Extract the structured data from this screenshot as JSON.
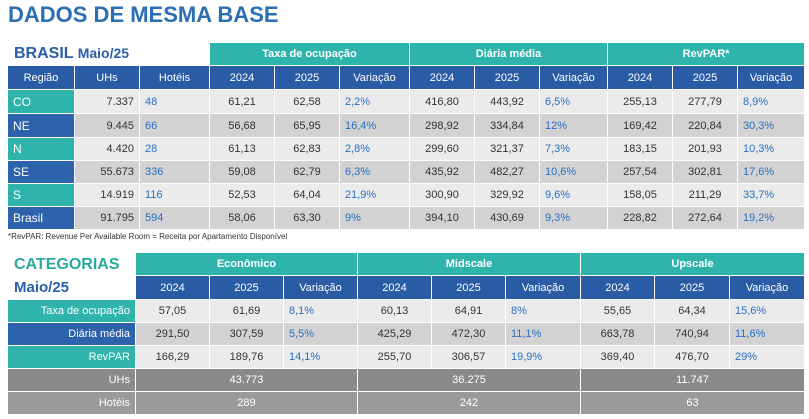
{
  "title": "DADOS DE MESMA BASE",
  "table1": {
    "label": "BRASIL",
    "period": "Maio/25",
    "groups": [
      "Taxa de ocupação",
      "Diária média",
      "RevPAR*"
    ],
    "columns": [
      "Região",
      "UHs",
      "Hotéis",
      "2024",
      "2025",
      "Variação",
      "2024",
      "2025",
      "Variação",
      "2024",
      "2025",
      "Variação"
    ],
    "rows": [
      [
        "CO",
        "7.337",
        "48",
        "61,21",
        "62,58",
        "2,2%",
        "416,80",
        "443,92",
        "6,5%",
        "255,13",
        "277,79",
        "8,9%"
      ],
      [
        "NE",
        "9.445",
        "66",
        "56,68",
        "65,95",
        "16,4%",
        "298,92",
        "334,84",
        "12%",
        "169,42",
        "220,84",
        "30,3%"
      ],
      [
        "N",
        "4.420",
        "28",
        "61,13",
        "62,83",
        "2,8%",
        "299,60",
        "321,37",
        "7,3%",
        "183,15",
        "201,93",
        "10,3%"
      ],
      [
        "SE",
        "55.673",
        "336",
        "59,08",
        "62,79",
        "6,3%",
        "435,92",
        "482,27",
        "10,6%",
        "257,54",
        "302,81",
        "17,6%"
      ],
      [
        "S",
        "14.919",
        "116",
        "52,53",
        "64,04",
        "21,9%",
        "300,90",
        "329,92",
        "9,6%",
        "158,05",
        "211,29",
        "33,7%"
      ],
      [
        "Brasil",
        "91.795",
        "594",
        "58,06",
        "63,30",
        "9%",
        "394,10",
        "430,69",
        "9,3%",
        "228,82",
        "272,64",
        "19,2%"
      ]
    ]
  },
  "footnote": "*RevPAR: Revenue Per Available Room = Receita por Apartamento Disponível",
  "table2": {
    "label": "CATEGORIAS",
    "period": "Maio/25",
    "groups": [
      "Econômico",
      "Midscale",
      "Upscale"
    ],
    "columns": [
      "2024",
      "2025",
      "Variação",
      "2024",
      "2025",
      "Variação",
      "2024",
      "2025",
      "Variação"
    ],
    "rows": [
      [
        "Taxa de ocupação",
        "57,05",
        "61,69",
        "8,1%",
        "60,13",
        "64,91",
        "8%",
        "55,65",
        "64,34",
        "15,6%"
      ],
      [
        "Diária média",
        "291,50",
        "307,59",
        "5,5%",
        "425,29",
        "472,30",
        "11,1%",
        "663,78",
        "740,94",
        "11,6%"
      ],
      [
        "RevPAR",
        "166,29",
        "189,76",
        "14,1%",
        "255,70",
        "306,57",
        "19,9%",
        "369,40",
        "476,70",
        "29%"
      ]
    ],
    "totals": [
      [
        "UHs",
        "43.773",
        "36.275",
        "11.747"
      ],
      [
        "Hotéis",
        "289",
        "242",
        "63"
      ]
    ]
  }
}
